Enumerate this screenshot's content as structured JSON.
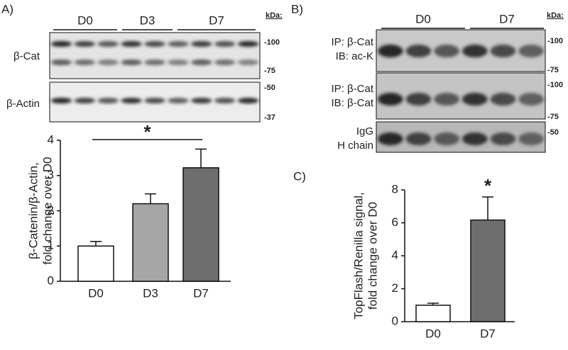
{
  "blots": {
    "a": {
      "label": "A)",
      "kda": "kDa:",
      "groups": [
        "D0",
        "D3",
        "D7"
      ],
      "rows": [
        {
          "names": [
            "β-Cat"
          ],
          "markers": [
            "-100",
            "-75"
          ]
        },
        {
          "names": [
            "β-Actin"
          ],
          "markers": [
            "-50",
            "-37"
          ]
        }
      ]
    },
    "b": {
      "label": "B)",
      "kda": "kDa:",
      "groups": [
        "D0",
        "D7"
      ],
      "rows": [
        {
          "names": [
            "IP: β-Cat",
            "IB: ac-K"
          ],
          "markers": [
            "-100",
            "-75"
          ]
        },
        {
          "names": [
            "IP: β-Cat",
            "IB: β-Cat"
          ],
          "markers": [
            "-100",
            "-75"
          ]
        },
        {
          "names": [
            "IgG",
            "H chain"
          ],
          "markers": [
            "-50"
          ]
        }
      ]
    }
  },
  "chart_data": [
    {
      "type": "bar",
      "panel_label": null,
      "categories": [
        "D0",
        "D3",
        "D7"
      ],
      "values": [
        1.0,
        2.2,
        3.22
      ],
      "errors": [
        0.13,
        0.28,
        0.53
      ],
      "colors": [
        "#ffffff",
        "#a6a6a6",
        "#6e6e6e"
      ],
      "ylim": [
        0,
        4
      ],
      "yticks": [
        0,
        1,
        2,
        3,
        4
      ],
      "ylabel": [
        "β-Catenin/β-Actin,",
        "fold change over D0"
      ],
      "annotation": "*"
    },
    {
      "type": "bar",
      "panel_label": "C)",
      "categories": [
        "D0",
        "D7"
      ],
      "values": [
        1.0,
        6.17
      ],
      "errors": [
        0.12,
        1.4
      ],
      "colors": [
        "#ffffff",
        "#6e6e6e"
      ],
      "ylim": [
        0,
        8
      ],
      "yticks": [
        0,
        2,
        4,
        6,
        8
      ],
      "ylabel": [
        "TopFlash/Renilla signal,",
        "fold change over D0"
      ],
      "annotation": "*"
    }
  ]
}
